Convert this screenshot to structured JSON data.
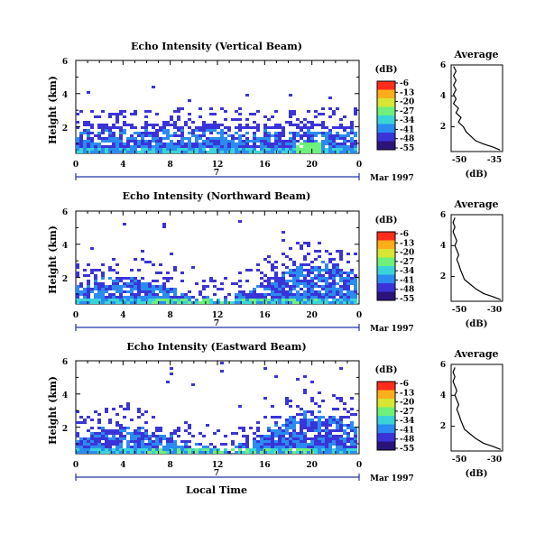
{
  "chart_data": [
    {
      "type": "heatmap",
      "title": "Echo Intensity (Vertical Beam)",
      "ylabel": "Height (km)",
      "xticks": [
        "0",
        "4",
        "8",
        "12",
        "16",
        "20",
        "0"
      ],
      "xlim": [
        0,
        24
      ],
      "yticks": [
        "2",
        "4",
        "6"
      ],
      "ylim": [
        0.4,
        6.0
      ],
      "day_label": "7",
      "date_label": "Mar 1997",
      "colorbar": {
        "unit": "(dB)",
        "ticks": [
          "-6",
          "-13",
          "-20",
          "-27",
          "-34",
          "-41",
          "-48",
          "-55"
        ]
      },
      "average": {
        "title": "Average",
        "xlabel": "(dB)",
        "xticks": [
          "-50",
          "-35"
        ],
        "xlim": [
          -55,
          -34
        ],
        "yticks": [
          "2",
          "4",
          "6"
        ],
        "ylim": [
          0.4,
          6.0
        ],
        "profile": [
          [
            -35,
            0.5
          ],
          [
            -38,
            0.7
          ],
          [
            -42,
            0.9
          ],
          [
            -45,
            1.1
          ],
          [
            -47,
            1.4
          ],
          [
            -49,
            1.7
          ],
          [
            -50,
            2.0
          ],
          [
            -52,
            2.3
          ],
          [
            -51,
            2.6
          ],
          [
            -53,
            2.9
          ],
          [
            -52,
            3.2
          ],
          [
            -54,
            3.5
          ],
          [
            -53,
            3.8
          ],
          [
            -54,
            4.1
          ],
          [
            -53,
            4.4
          ],
          [
            -54,
            4.7
          ],
          [
            -53,
            5.0
          ],
          [
            -54,
            5.3
          ],
          [
            -53,
            5.6
          ],
          [
            -54,
            5.9
          ]
        ]
      }
    },
    {
      "type": "heatmap",
      "title": "Echo Intensity (Northward Beam)",
      "ylabel": "Height (km)",
      "xticks": [
        "0",
        "4",
        "8",
        "12",
        "16",
        "20",
        "0"
      ],
      "xlim": [
        0,
        24
      ],
      "yticks": [
        "2",
        "4",
        "6"
      ],
      "ylim": [
        0.4,
        6.0
      ],
      "day_label": "7",
      "date_label": "Mar 1997",
      "colorbar": {
        "unit": "(dB)",
        "ticks": [
          "-6",
          "-13",
          "-20",
          "-27",
          "-34",
          "-41",
          "-48",
          "-55"
        ]
      },
      "average": {
        "title": "Average",
        "xlabel": "(dB)",
        "xticks": [
          "-50",
          "-30"
        ],
        "xlim": [
          -55,
          -28
        ],
        "yticks": [
          "2",
          "4",
          "6"
        ],
        "ylim": [
          0.4,
          6.0
        ],
        "profile": [
          [
            -29,
            0.5
          ],
          [
            -33,
            0.7
          ],
          [
            -38,
            0.9
          ],
          [
            -42,
            1.2
          ],
          [
            -45,
            1.5
          ],
          [
            -48,
            1.8
          ],
          [
            -49,
            2.1
          ],
          [
            -50,
            2.4
          ],
          [
            -51,
            2.8
          ],
          [
            -52,
            3.1
          ],
          [
            -51,
            3.4
          ],
          [
            -52,
            3.7
          ],
          [
            -53,
            4.0
          ],
          [
            -52,
            4.3
          ],
          [
            -53,
            4.6
          ],
          [
            -54,
            4.9
          ],
          [
            -53,
            5.2
          ],
          [
            -54,
            5.5
          ],
          [
            -53,
            5.8
          ]
        ]
      }
    },
    {
      "type": "heatmap",
      "title": "Echo Intensity (Eastward Beam)",
      "ylabel": "Height (km)",
      "xlabel": "Local Time",
      "xticks": [
        "0",
        "4",
        "8",
        "12",
        "16",
        "20",
        "0"
      ],
      "xlim": [
        0,
        24
      ],
      "yticks": [
        "2",
        "4",
        "6"
      ],
      "ylim": [
        0.4,
        6.0
      ],
      "day_label": "7",
      "date_label": "Mar 1997",
      "colorbar": {
        "unit": "(dB)",
        "ticks": [
          "-6",
          "-13",
          "-20",
          "-27",
          "-34",
          "-41",
          "-48",
          "-55"
        ]
      },
      "average": {
        "title": "Average",
        "xlabel": "(dB)",
        "xticks": [
          "-50",
          "-30"
        ],
        "xlim": [
          -55,
          -28
        ],
        "yticks": [
          "2",
          "4",
          "6"
        ],
        "ylim": [
          0.4,
          6.0
        ],
        "profile": [
          [
            -29,
            0.5
          ],
          [
            -33,
            0.7
          ],
          [
            -38,
            0.9
          ],
          [
            -42,
            1.2
          ],
          [
            -45,
            1.5
          ],
          [
            -48,
            1.8
          ],
          [
            -49,
            2.1
          ],
          [
            -50,
            2.4
          ],
          [
            -51,
            2.8
          ],
          [
            -52,
            3.1
          ],
          [
            -51,
            3.4
          ],
          [
            -52,
            3.7
          ],
          [
            -53,
            4.0
          ],
          [
            -52,
            4.3
          ],
          [
            -53,
            4.6
          ],
          [
            -54,
            4.9
          ],
          [
            -53,
            5.2
          ],
          [
            -54,
            5.5
          ],
          [
            -53,
            5.8
          ]
        ]
      }
    }
  ],
  "colorbar_colors": [
    "#ff2d1a",
    "#ffae1a",
    "#d6e632",
    "#6ef07a",
    "#3ad4d8",
    "#2a8cf0",
    "#3a34d8",
    "#2a147a"
  ]
}
